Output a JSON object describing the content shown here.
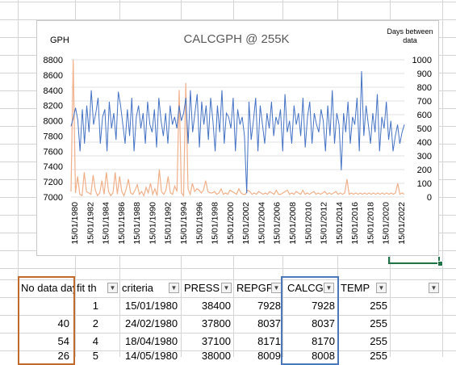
{
  "chart": {
    "title": "CALCGPH @ 255K",
    "left_axis_label": "GPH",
    "right_axis_label_line1": "Days between",
    "right_axis_label_line2": "data",
    "left_ticks": [
      "8800",
      "8600",
      "8400",
      "8200",
      "8000",
      "7800",
      "7600",
      "7400",
      "7200",
      "7000"
    ],
    "right_ticks": [
      "1000",
      "900",
      "800",
      "700",
      "600",
      "500",
      "400",
      "300",
      "200",
      "100",
      "0"
    ],
    "x_ticks": [
      "15/01/1980",
      "15/01/1982",
      "15/01/1984",
      "15/01/1986",
      "15/01/1988",
      "15/01/1990",
      "15/01/1992",
      "15/01/1994",
      "15/01/1996",
      "15/01/1998",
      "15/01/2000",
      "15/01/2002",
      "15/01/2004",
      "15/01/2006",
      "15/01/2008",
      "15/01/2010",
      "15/01/2012",
      "15/01/2014",
      "15/01/2016",
      "15/01/2018",
      "15/01/2020",
      "15/01/2022"
    ],
    "colors": {
      "gph": "#4472c4",
      "days": "#f0b08a"
    }
  },
  "chart_data": {
    "type": "line",
    "title": "CALCGPH @ 255K",
    "x_range": [
      "15/01/1980",
      "2023"
    ],
    "series": [
      {
        "axis": "left",
        "ylim": [
          7000,
          8800
        ],
        "values": [
          7928,
          8037,
          8170,
          8008,
          7600,
          8150,
          7700,
          8200,
          7850,
          8400,
          7950,
          8100,
          8300,
          7700,
          8050,
          8150,
          7600,
          8250,
          7900,
          8100,
          7750,
          8380,
          8200,
          7950,
          7700,
          8150,
          7800,
          8300,
          7600,
          8050,
          8200,
          7900,
          8100,
          7700,
          8250,
          7950,
          7850,
          8150,
          7650,
          8300,
          8000,
          7800,
          8100,
          7700,
          8200,
          7950,
          8050,
          7900,
          8200,
          8000,
          8100,
          8300,
          7700,
          8400,
          7850,
          8100,
          8350,
          7650,
          8250,
          7950,
          8200,
          7750,
          8300,
          8000,
          7600,
          8200,
          7850,
          8400,
          7700,
          8100,
          8050,
          7900,
          8300,
          7600,
          8150,
          7950,
          8050,
          7800,
          7050,
          8250,
          7750,
          8000,
          8300,
          7600,
          8200,
          7950,
          7700,
          8100,
          7900,
          8250,
          7800,
          8050,
          7950,
          8150,
          7600,
          8350,
          7850,
          8000,
          7700,
          8200,
          7950,
          8100,
          7800,
          8300,
          7650,
          8050,
          8250,
          7700,
          8100,
          7950,
          7850,
          8150,
          8000,
          7600,
          8200,
          7800,
          8400,
          7700,
          8100,
          7950,
          7350,
          8100,
          7850,
          8250,
          7700,
          8050,
          7950,
          8300,
          7600,
          8650,
          7800,
          8200,
          7950,
          7700,
          8100,
          7850,
          8350,
          7600,
          8050,
          7900,
          8250,
          7750,
          8000,
          7600,
          7800,
          7950,
          7700,
          7850,
          7950
        ]
      },
      {
        "axis": "right",
        "ylim": [
          0,
          1000
        ],
        "values": [
          40,
          1000,
          30,
          150,
          20,
          10,
          180,
          40,
          30,
          20,
          160,
          50,
          10,
          30,
          120,
          20,
          180,
          40,
          10,
          30,
          180,
          20,
          150,
          40,
          10,
          60,
          130,
          30,
          20,
          50,
          90,
          20,
          40,
          10,
          70,
          30,
          100,
          20,
          60,
          10,
          200,
          40,
          20,
          50,
          150,
          30,
          20,
          80,
          40,
          780,
          30,
          10,
          830,
          60,
          20,
          100,
          40,
          60,
          50,
          30,
          50,
          120,
          40,
          30,
          30,
          40,
          20,
          30,
          60,
          20,
          30,
          20,
          50,
          40,
          30,
          20,
          60,
          30,
          20,
          20,
          50,
          40,
          20,
          30,
          20,
          40,
          30,
          20,
          30,
          20,
          40,
          30,
          20,
          50,
          20,
          20,
          30,
          40,
          50,
          20,
          30,
          20,
          40,
          30,
          20,
          50,
          20,
          30,
          20,
          30,
          40,
          20,
          30,
          20,
          30,
          40,
          20,
          30,
          20,
          30,
          40,
          20,
          30,
          20,
          30,
          130,
          20,
          30,
          20,
          30,
          20,
          30,
          20,
          30,
          20,
          30,
          20,
          30,
          20,
          30,
          20,
          30,
          20,
          30,
          20,
          30,
          20,
          30,
          100,
          20,
          30,
          20
        ]
      }
    ]
  },
  "table": {
    "headers": [
      "No data days",
      "fit th",
      "criteria",
      "PRESS",
      "REPGPH",
      "CALCGPH",
      "TEMP",
      ""
    ],
    "rows": [
      [
        "",
        "1",
        "15/01/1980",
        "38400",
        "7928",
        "7928",
        "255"
      ],
      [
        "40",
        "2",
        "24/02/1980",
        "37800",
        "8037",
        "8037",
        "255"
      ],
      [
        "54",
        "4",
        "18/04/1980",
        "37100",
        "8171",
        "8170",
        "255"
      ],
      [
        "26",
        "5",
        "14/05/1980",
        "38000",
        "8009",
        "8008",
        "255"
      ]
    ]
  }
}
